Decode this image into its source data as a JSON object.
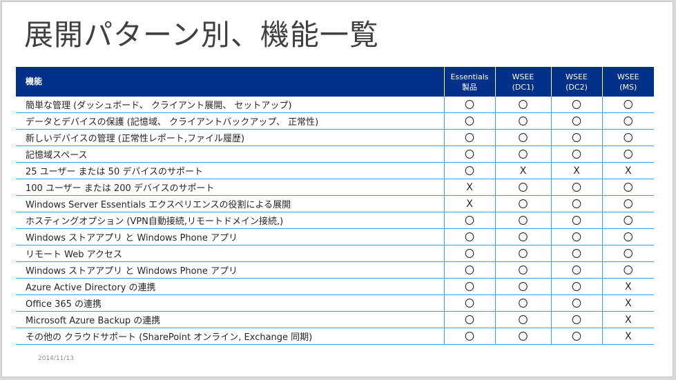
{
  "title": "展開パターン別、機能一覧",
  "table": {
    "header": {
      "feature": "機能",
      "columns": [
        {
          "line1": "Essentials",
          "line2": "製品"
        },
        {
          "line1": "WSEE",
          "line2": "(DC1)"
        },
        {
          "line1": "WSEE",
          "line2": "(DC2)"
        },
        {
          "line1": "WSEE",
          "line2": "(MS)"
        }
      ]
    },
    "rows": [
      {
        "feature": "簡単な管理 (ダッシュボード、 クライアント展開、 セットアップ)",
        "marks": [
          "〇",
          "〇",
          "〇",
          "〇"
        ]
      },
      {
        "feature": "データとデバイスの保護 (記憶域、 クライアントバックアップ、 正常性)",
        "marks": [
          "〇",
          "〇",
          "〇",
          "〇"
        ]
      },
      {
        "feature": "新しいデバイスの管理 (正常性レポート,ファイル履歴)",
        "marks": [
          "〇",
          "〇",
          "〇",
          "〇"
        ]
      },
      {
        "feature": "記憶域スペース",
        "marks": [
          "〇",
          "〇",
          "〇",
          "〇"
        ]
      },
      {
        "feature": "25 ユーザー または 50 デバイスのサポート",
        "marks": [
          "〇",
          "X",
          "X",
          "X"
        ]
      },
      {
        "feature": "100 ユーザー または 200 デバイスのサポート",
        "marks": [
          "X",
          "〇",
          "〇",
          "〇"
        ]
      },
      {
        "feature": "Windows Server Essentials エクスペリエンスの役割による展開",
        "marks": [
          "X",
          "〇",
          "〇",
          "〇"
        ]
      },
      {
        "feature": "ホスティングオプション (VPN自動接続,リモートドメイン接続,)",
        "marks": [
          "〇",
          "〇",
          "〇",
          "〇"
        ]
      },
      {
        "feature": "Windows ストアアプリ と Windows Phone アプリ",
        "marks": [
          "〇",
          "〇",
          "〇",
          "〇"
        ]
      },
      {
        "feature": "リモート Web アクセス",
        "marks": [
          "〇",
          "〇",
          "〇",
          "〇"
        ]
      },
      {
        "feature": "Windows ストアアプリ と Windows Phone アプリ",
        "marks": [
          "〇",
          "〇",
          "〇",
          "〇"
        ]
      },
      {
        "feature": "Azure Active Directory の連携",
        "marks": [
          "〇",
          "〇",
          "〇",
          "X"
        ]
      },
      {
        "feature": "Office 365 の連携",
        "marks": [
          "〇",
          "〇",
          "〇",
          "X"
        ]
      },
      {
        "feature": "Microsoft Azure Backup の連携",
        "marks": [
          "〇",
          "〇",
          "〇",
          "X"
        ]
      },
      {
        "feature": "その他の クラウドサポート (SharePoint オンライン, Exchange 同期)",
        "marks": [
          "〇",
          "〇",
          "〇",
          "X"
        ]
      }
    ]
  },
  "date": "2014/11/13",
  "colors": {
    "header_bg": "#003087",
    "grid_line": "#2aa7e4",
    "title": "#404040"
  }
}
